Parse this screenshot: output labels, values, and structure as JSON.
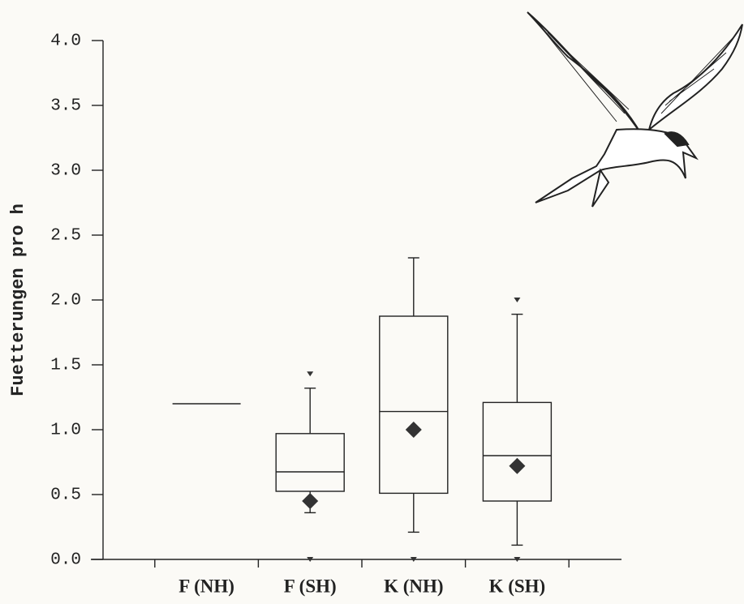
{
  "chart_data": {
    "type": "box",
    "ylabel": "Fuetterungen pro h",
    "categories": [
      "F (NH)",
      "F (SH)",
      "K (NH)",
      "K (SH)"
    ],
    "boxes": [
      {
        "whisker_low": null,
        "q1": 1.2,
        "median": 1.2,
        "q3": 1.2,
        "whisker_high": null,
        "mean": null,
        "outliers": []
      },
      {
        "whisker_low": 0.36,
        "q1": 0.525,
        "median": 0.675,
        "q3": 0.97,
        "whisker_high": 1.32,
        "mean": 0.45,
        "outliers": [
          1.43,
          0.0
        ]
      },
      {
        "whisker_low": 0.21,
        "q1": 0.51,
        "median": 1.14,
        "q3": 1.875,
        "whisker_high": 2.325,
        "mean": 1.0,
        "outliers": [
          0.0
        ]
      },
      {
        "whisker_low": 0.11,
        "q1": 0.45,
        "median": 0.8,
        "q3": 1.21,
        "whisker_high": 1.89,
        "mean": 0.72,
        "outliers": [
          2.0,
          0.0
        ]
      }
    ],
    "color": "#333333",
    "ylim": [
      0,
      4
    ],
    "yticks": [
      {
        "value": 0,
        "label": "0.0"
      },
      {
        "value": 0.5,
        "label": "0.5"
      },
      {
        "value": 1,
        "label": "1.0"
      },
      {
        "value": 1.5,
        "label": "1.5"
      },
      {
        "value": 2,
        "label": "2.0"
      },
      {
        "value": 2.5,
        "label": "2.5"
      },
      {
        "value": 3,
        "label": "3.0"
      },
      {
        "value": 3.5,
        "label": "3.5"
      },
      {
        "value": 4,
        "label": "4.0"
      }
    ]
  }
}
